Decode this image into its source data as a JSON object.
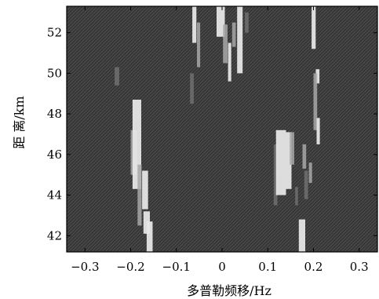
{
  "chart_data": {
    "type": "heatmap",
    "title": "",
    "xlabel": "多普勒频移/Hz",
    "ylabel": "距 离/km",
    "xlim": [
      -0.34,
      0.34
    ],
    "ylim": [
      41.2,
      53.3
    ],
    "xticks": [
      "-0.3",
      "-0.2",
      "-0.1",
      "0",
      "0.1",
      "0.2",
      "0.3"
    ],
    "yticks": [
      "42",
      "44",
      "46",
      "48",
      "50",
      "52"
    ],
    "grid": false,
    "legend": "none",
    "colors": {
      "background": "#3a3a3a",
      "weak": "#707070",
      "medium": "#a8a8a8",
      "strong": "#e6e6e6"
    },
    "echoes": [
      {
        "x0": -0.235,
        "x1": -0.225,
        "y0": 49.4,
        "y1": 50.3,
        "level": "weak"
      },
      {
        "x0": -0.2,
        "x1": -0.186,
        "y0": 45.0,
        "y1": 47.2,
        "level": "medium"
      },
      {
        "x0": -0.196,
        "x1": -0.177,
        "y0": 44.3,
        "y1": 48.7,
        "level": "strong"
      },
      {
        "x0": -0.185,
        "x1": -0.176,
        "y0": 42.5,
        "y1": 45.5,
        "level": "medium"
      },
      {
        "x0": -0.175,
        "x1": -0.162,
        "y0": 43.3,
        "y1": 45.2,
        "level": "strong"
      },
      {
        "x0": -0.172,
        "x1": -0.158,
        "y0": 42.1,
        "y1": 43.2,
        "level": "strong"
      },
      {
        "x0": -0.165,
        "x1": -0.152,
        "y0": 41.2,
        "y1": 42.7,
        "level": "strong"
      },
      {
        "x0": -0.07,
        "x1": -0.062,
        "y0": 48.5,
        "y1": 50.0,
        "level": "weak"
      },
      {
        "x0": -0.065,
        "x1": -0.056,
        "y0": 51.5,
        "y1": 53.3,
        "level": "strong"
      },
      {
        "x0": -0.055,
        "x1": -0.048,
        "y0": 50.3,
        "y1": 52.5,
        "level": "medium"
      },
      {
        "x0": -0.012,
        "x1": 0.006,
        "y0": 51.8,
        "y1": 53.3,
        "level": "strong"
      },
      {
        "x0": 0.002,
        "x1": 0.012,
        "y0": 50.5,
        "y1": 52.4,
        "level": "medium"
      },
      {
        "x0": 0.013,
        "x1": 0.02,
        "y0": 49.6,
        "y1": 51.5,
        "level": "strong"
      },
      {
        "x0": 0.022,
        "x1": 0.03,
        "y0": 51.3,
        "y1": 52.5,
        "level": "medium"
      },
      {
        "x0": 0.033,
        "x1": 0.045,
        "y0": 50.0,
        "y1": 53.3,
        "level": "strong"
      },
      {
        "x0": 0.05,
        "x1": 0.058,
        "y0": 52.0,
        "y1": 53.0,
        "level": "weak"
      },
      {
        "x0": 0.113,
        "x1": 0.121,
        "y0": 43.5,
        "y1": 46.5,
        "level": "weak"
      },
      {
        "x0": 0.118,
        "x1": 0.14,
        "y0": 44.0,
        "y1": 47.2,
        "level": "strong"
      },
      {
        "x0": 0.14,
        "x1": 0.152,
        "y0": 44.3,
        "y1": 47.1,
        "level": "strong"
      },
      {
        "x0": 0.148,
        "x1": 0.158,
        "y0": 45.5,
        "y1": 47.1,
        "level": "medium"
      },
      {
        "x0": 0.16,
        "x1": 0.166,
        "y0": 43.5,
        "y1": 44.4,
        "level": "weak"
      },
      {
        "x0": 0.168,
        "x1": 0.182,
        "y0": 41.2,
        "y1": 42.8,
        "level": "strong"
      },
      {
        "x0": 0.176,
        "x1": 0.184,
        "y0": 45.3,
        "y1": 46.5,
        "level": "medium"
      },
      {
        "x0": 0.18,
        "x1": 0.188,
        "y0": 43.8,
        "y1": 45.2,
        "level": "weak"
      },
      {
        "x0": 0.19,
        "x1": 0.197,
        "y0": 44.6,
        "y1": 45.6,
        "level": "medium"
      },
      {
        "x0": 0.196,
        "x1": 0.205,
        "y0": 51.2,
        "y1": 53.3,
        "level": "strong"
      },
      {
        "x0": 0.205,
        "x1": 0.213,
        "y0": 49.5,
        "y1": 50.2,
        "level": "strong"
      },
      {
        "x0": 0.2,
        "x1": 0.208,
        "y0": 47.2,
        "y1": 50.0,
        "level": "medium"
      },
      {
        "x0": 0.207,
        "x1": 0.214,
        "y0": 46.5,
        "y1": 47.8,
        "level": "strong"
      }
    ]
  }
}
